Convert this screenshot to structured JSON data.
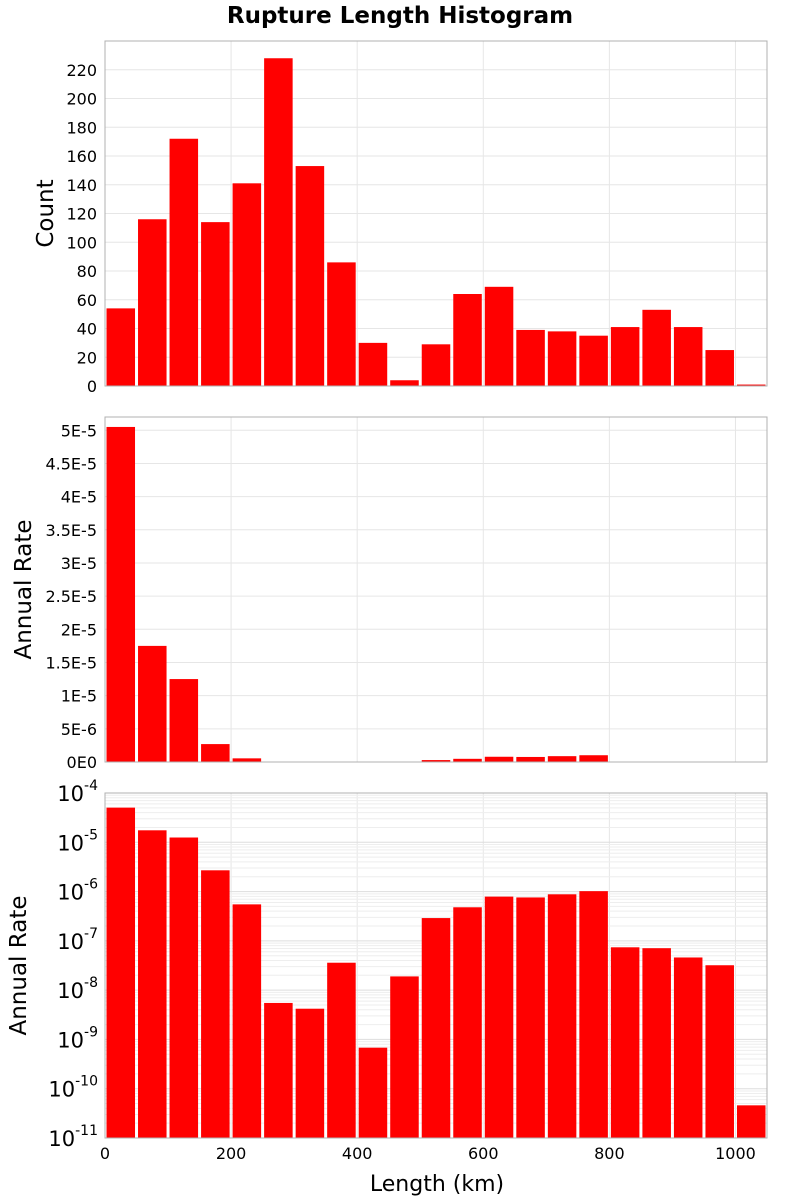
{
  "chart_data": {
    "title": "Rupture Length Histogram",
    "xlabel": "Length (km)",
    "xlim": [
      0,
      1050
    ],
    "xticks": [
      "0",
      "200",
      "400",
      "600",
      "800",
      "1000"
    ],
    "bar_color": "#ff0000",
    "grid": true,
    "bin_width": 50,
    "bin_centers": [
      25,
      75,
      125,
      175,
      225,
      275,
      325,
      375,
      425,
      475,
      525,
      575,
      625,
      675,
      725,
      775,
      825,
      875,
      925,
      975,
      1025
    ],
    "panels": [
      {
        "type": "bar",
        "ylabel": "Count",
        "yscale": "linear",
        "ylim": [
          0,
          240
        ],
        "yticks": [
          "0",
          "20",
          "40",
          "60",
          "80",
          "100",
          "120",
          "140",
          "160",
          "180",
          "200",
          "220"
        ],
        "values": [
          54,
          116,
          172,
          114,
          141,
          228,
          153,
          86,
          30,
          4,
          29,
          64,
          69,
          39,
          38,
          35,
          41,
          53,
          41,
          25,
          1
        ]
      },
      {
        "type": "bar",
        "ylabel": "Annual Rate",
        "yscale": "linear",
        "ylim": [
          0,
          5.2e-05
        ],
        "yticks": [
          "0E0",
          "5E-6",
          "1E-5",
          "1.5E-5",
          "2E-5",
          "2.5E-5",
          "3E-5",
          "3.5E-5",
          "4E-5",
          "4.5E-5",
          "5E-5"
        ],
        "values": [
          5.05e-05,
          1.75e-05,
          1.25e-05,
          2.7e-06,
          5.5e-07,
          5.5e-09,
          4.2e-09,
          3.6e-08,
          6.8e-10,
          1.9e-08,
          2.9e-07,
          4.8e-07,
          7.9e-07,
          7.6e-07,
          8.8e-07,
          1.02e-06,
          7.4e-08,
          7.1e-08,
          4.6e-08,
          3.2e-08,
          4.6e-11
        ]
      },
      {
        "type": "bar",
        "ylabel": "Annual Rate",
        "yscale": "log",
        "ylim": [
          1e-11,
          0.0001
        ],
        "ytick_exponents": [
          "-11",
          "-10",
          "-9",
          "-8",
          "-7",
          "-6",
          "-5",
          "-4"
        ],
        "ytick_base": "10",
        "values": [
          5.05e-05,
          1.75e-05,
          1.25e-05,
          2.7e-06,
          5.5e-07,
          5.5e-09,
          4.2e-09,
          3.6e-08,
          6.8e-10,
          1.9e-08,
          2.9e-07,
          4.8e-07,
          7.9e-07,
          7.6e-07,
          8.8e-07,
          1.02e-06,
          7.4e-08,
          7.1e-08,
          4.6e-08,
          3.2e-08,
          4.6e-11
        ]
      }
    ]
  }
}
